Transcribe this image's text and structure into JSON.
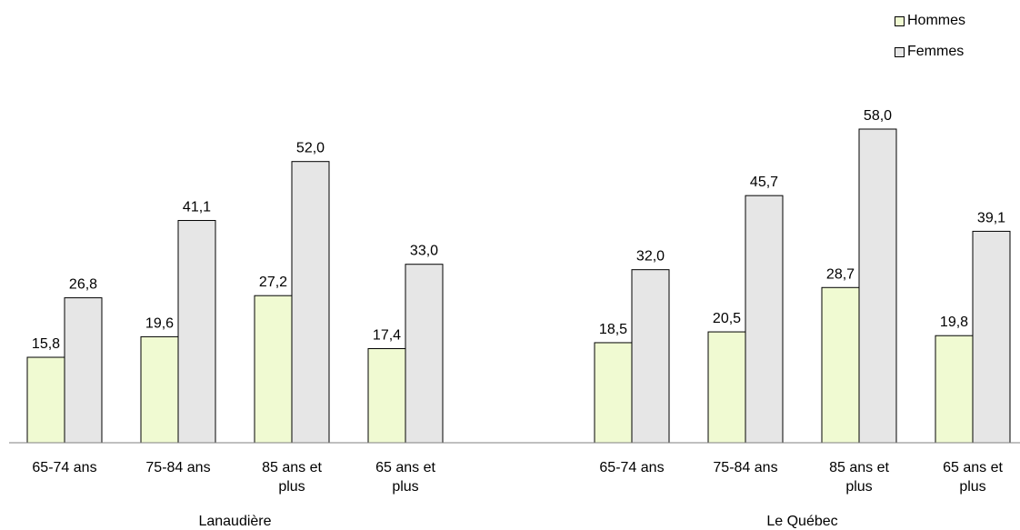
{
  "colors": {
    "hommes": "#f0fad2",
    "femmes": "#e6e6e6",
    "stroke": "#000000",
    "axis": "#808080"
  },
  "legend": {
    "items": [
      {
        "label": "Hommes",
        "color": "#f0fad2"
      },
      {
        "label": "Femmes",
        "color": "#e6e6e6"
      }
    ]
  },
  "chart_data": {
    "type": "bar",
    "title": "",
    "xlabel": "",
    "ylabel": "",
    "ylim": [
      0,
      60
    ],
    "grid": false,
    "legend_position": "top-right",
    "groups": [
      {
        "name": "Lanaudière",
        "categories": [
          [
            "65-74 ans"
          ],
          [
            "75-84 ans"
          ],
          [
            "85 ans et",
            "plus"
          ],
          [
            "65 ans et",
            "plus"
          ]
        ],
        "series": [
          {
            "name": "Hommes",
            "values": [
              15.8,
              19.6,
              27.2,
              17.4
            ],
            "labels": [
              "15,8",
              "19,6",
              "27,2",
              "17,4"
            ]
          },
          {
            "name": "Femmes",
            "values": [
              26.8,
              41.1,
              52.0,
              33.0
            ],
            "labels": [
              "26,8",
              "41,1",
              "52,0",
              "33,0"
            ]
          }
        ]
      },
      {
        "name": "Le Québec",
        "categories": [
          [
            "65-74 ans"
          ],
          [
            "75-84 ans"
          ],
          [
            "85 ans et",
            "plus"
          ],
          [
            "65 ans et",
            "plus"
          ]
        ],
        "series": [
          {
            "name": "Hommes",
            "values": [
              18.5,
              20.5,
              28.7,
              19.8
            ],
            "labels": [
              "18,5",
              "20,5",
              "28,7",
              "19,8"
            ]
          },
          {
            "name": "Femmes",
            "values": [
              32.0,
              45.7,
              58.0,
              39.1
            ],
            "labels": [
              "32,0",
              "45,7",
              "58,0",
              "39,1"
            ]
          }
        ]
      }
    ]
  }
}
